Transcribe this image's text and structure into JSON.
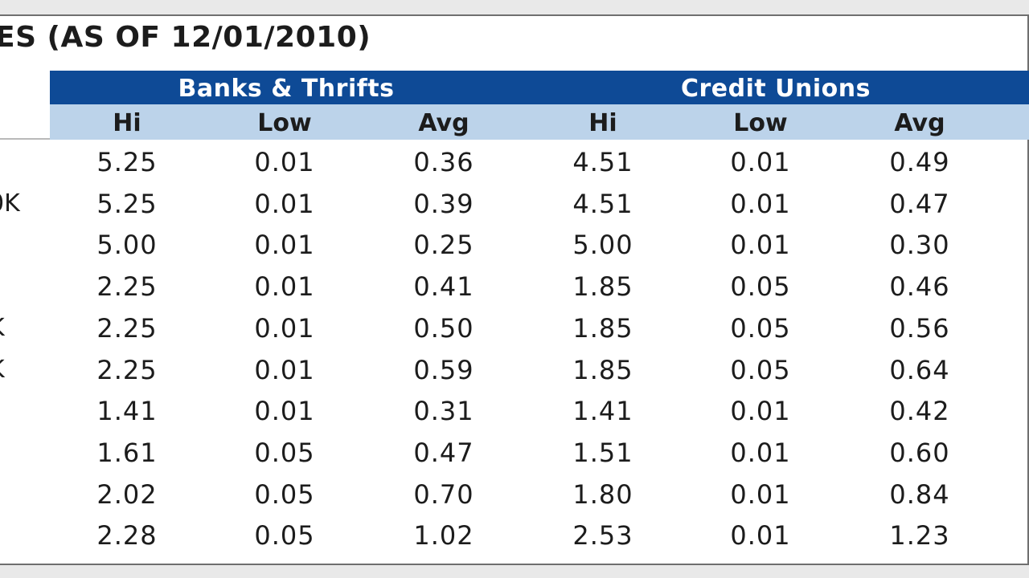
{
  "title": "ES (AS OF 12/01/2010)",
  "groups": {
    "banks": "Banks & Thrifts",
    "credit_unions": "Credit Unions"
  },
  "columns": [
    "Hi",
    "Low",
    "Avg",
    "Hi",
    "Low",
    "Avg"
  ],
  "rows": [
    {
      "label": "",
      "values": [
        "5.25",
        "0.01",
        "0.36",
        "4.51",
        "0.01",
        "0.49"
      ]
    },
    {
      "label": "0K",
      "values": [
        "5.25",
        "0.01",
        "0.39",
        "4.51",
        "0.01",
        "0.47"
      ]
    },
    {
      "label": "",
      "values": [
        "5.00",
        "0.01",
        "0.25",
        "5.00",
        "0.01",
        "0.30"
      ]
    },
    {
      "label": "",
      "values": [
        "2.25",
        "0.01",
        "0.41",
        "1.85",
        "0.05",
        "0.46"
      ]
    },
    {
      "label": "K",
      "values": [
        "2.25",
        "0.01",
        "0.50",
        "1.85",
        "0.05",
        "0.56"
      ]
    },
    {
      "label": "K",
      "values": [
        "2.25",
        "0.01",
        "0.59",
        "1.85",
        "0.05",
        "0.64"
      ]
    },
    {
      "label": "",
      "values": [
        "1.41",
        "0.01",
        "0.31",
        "1.41",
        "0.01",
        "0.42"
      ]
    },
    {
      "label": "",
      "values": [
        "1.61",
        "0.05",
        "0.47",
        "1.51",
        "0.01",
        "0.60"
      ]
    },
    {
      "label": "",
      "values": [
        "2.02",
        "0.05",
        "0.70",
        "1.80",
        "0.01",
        "0.84"
      ]
    },
    {
      "label": "",
      "values": [
        "2.28",
        "0.05",
        "1.02",
        "2.53",
        "0.01",
        "1.23"
      ]
    }
  ],
  "colors": {
    "header_blue": "#0e4a96",
    "subheader_light_blue": "#bcd3ea",
    "text": "#1c1c1c"
  }
}
